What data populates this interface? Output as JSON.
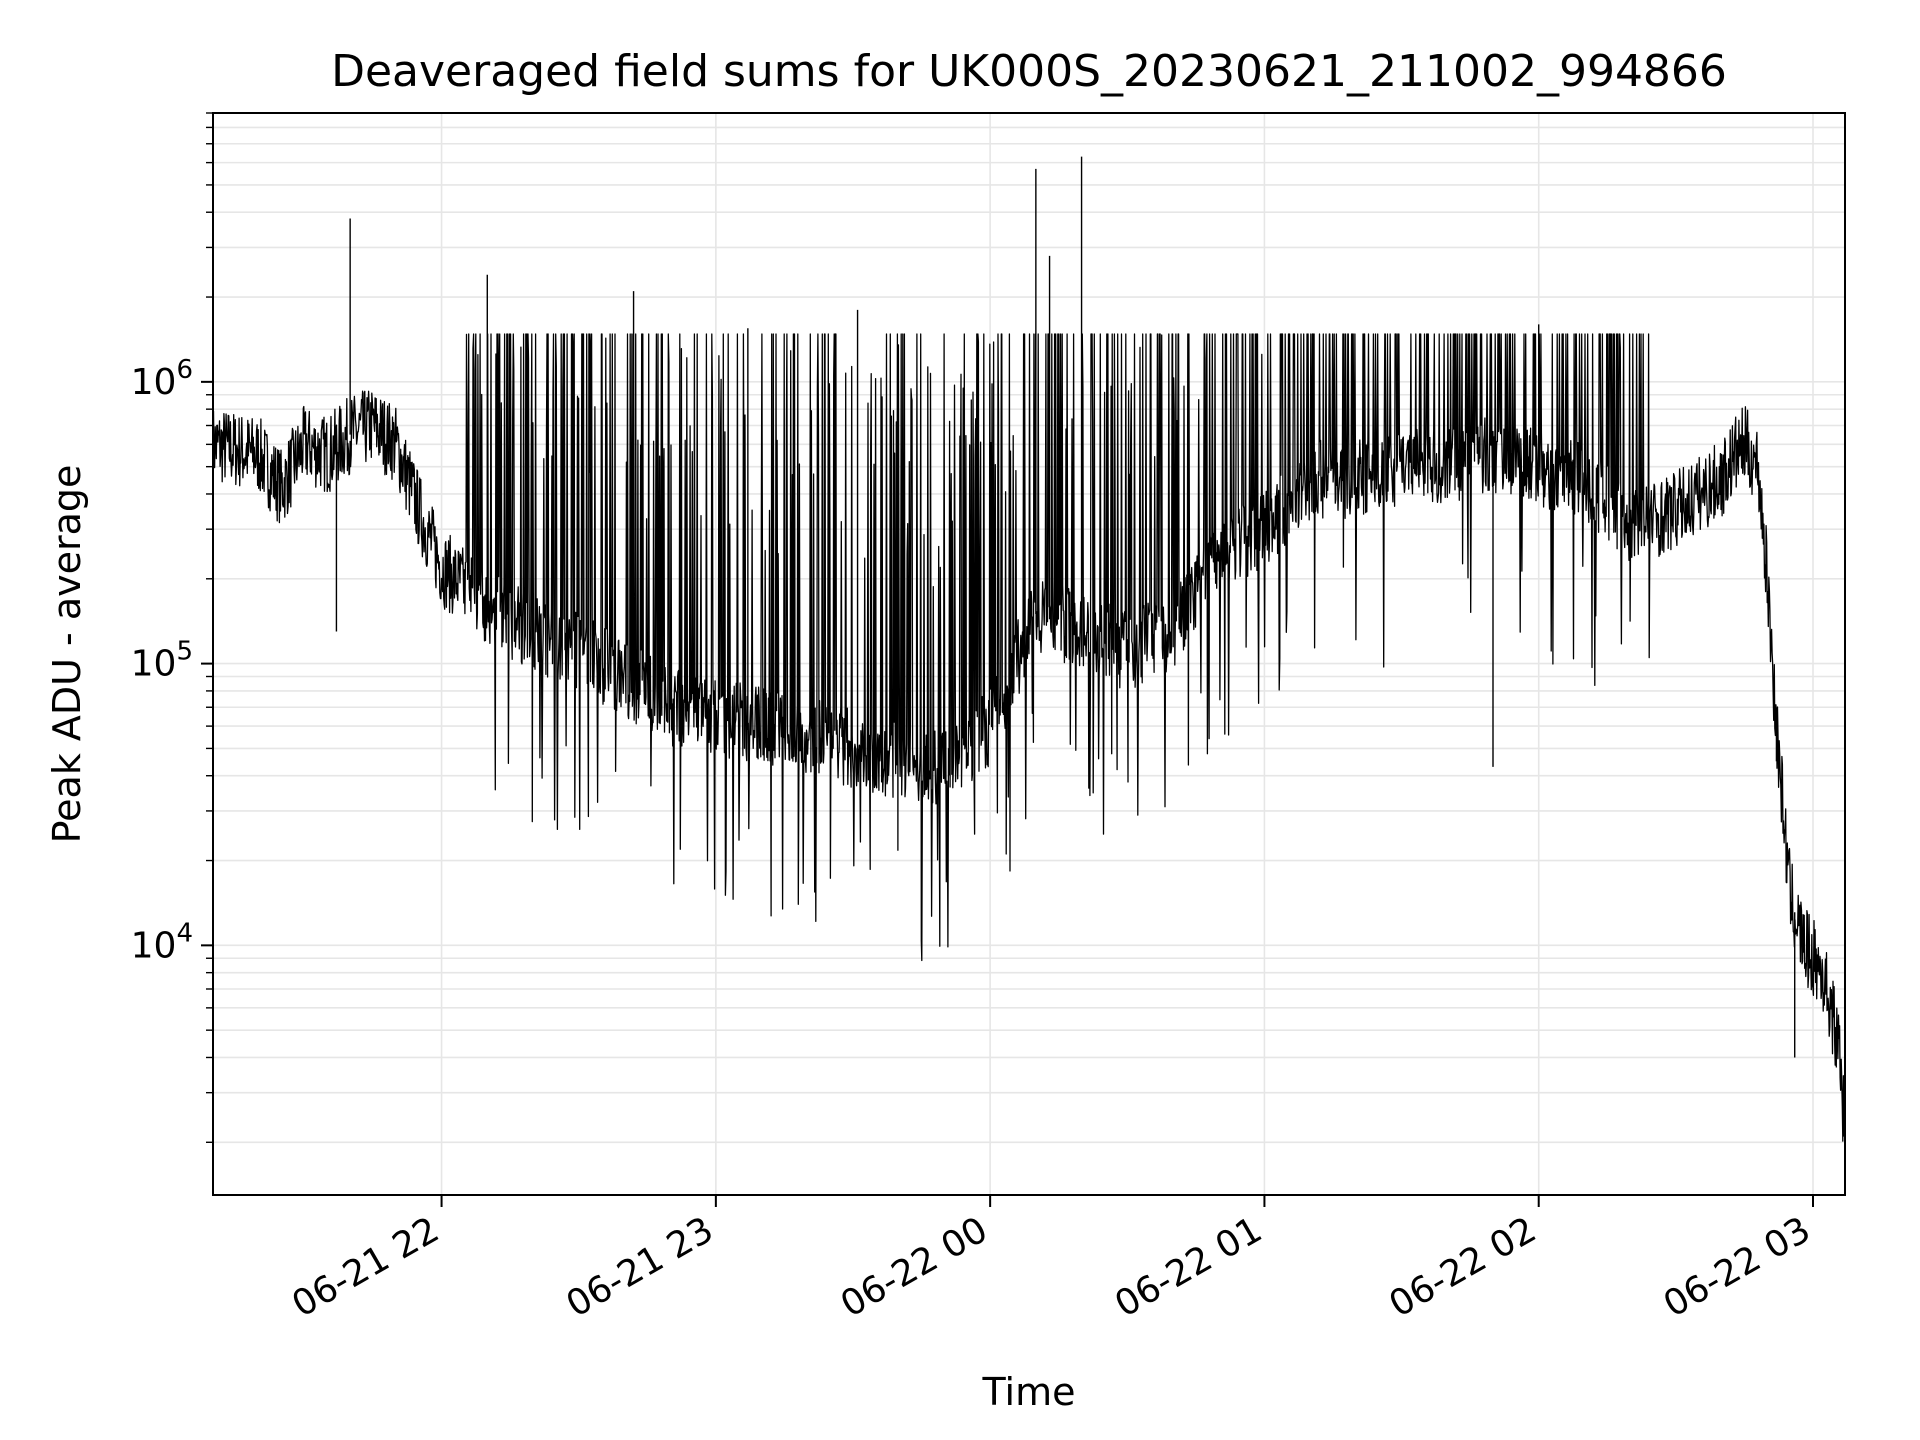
{
  "chart_data": {
    "type": "line",
    "title": "Deaveraged field sums for UK000S_20230621_211002_994866",
    "xlabel": "Time",
    "ylabel": "Peak ADU - average",
    "x_scale": "time",
    "y_scale": "log",
    "xlim": [
      "2023-06-21 21:10",
      "2023-06-22 03:07"
    ],
    "ylim": [
      1300,
      9000000
    ],
    "grid": true,
    "line_color": "#000000",
    "grid_color": "#e6e6e6",
    "x_ticks": [
      {
        "t": "2023-06-21 22:00",
        "label": "06-21 22"
      },
      {
        "t": "2023-06-21 23:00",
        "label": "06-21 23"
      },
      {
        "t": "2023-06-22 00:00",
        "label": "06-22 00"
      },
      {
        "t": "2023-06-22 01:00",
        "label": "06-22 01"
      },
      {
        "t": "2023-06-22 02:00",
        "label": "06-22 02"
      },
      {
        "t": "2023-06-22 03:00",
        "label": "06-22 03"
      }
    ],
    "y_ticks": [
      {
        "value": 10000,
        "base": "10",
        "exp": "4"
      },
      {
        "value": 100000,
        "base": "10",
        "exp": "5"
      },
      {
        "value": 1000000,
        "base": "10",
        "exp": "6"
      }
    ],
    "series": [
      {
        "x": [
          "2023-06-21 21:10",
          "2023-06-21 21:20",
          "2023-06-21 21:25",
          "2023-06-21 21:30",
          "2023-06-21 21:35",
          "2023-06-21 21:40",
          "2023-06-21 21:45",
          "2023-06-21 21:50",
          "2023-06-21 21:55",
          "2023-06-21 22:00",
          "2023-06-21 22:10",
          "2023-06-21 22:20",
          "2023-06-21 22:30",
          "2023-06-21 22:40",
          "2023-06-21 22:50",
          "2023-06-21 23:00",
          "2023-06-21 23:10",
          "2023-06-21 23:20",
          "2023-06-21 23:30",
          "2023-06-21 23:40",
          "2023-06-21 23:50",
          "2023-06-22 00:00",
          "2023-06-22 00:10",
          "2023-06-22 00:20",
          "2023-06-22 00:30",
          "2023-06-22 00:40",
          "2023-06-22 00:50",
          "2023-06-22 01:00",
          "2023-06-22 01:10",
          "2023-06-22 01:20",
          "2023-06-22 01:30",
          "2023-06-22 01:40",
          "2023-06-22 01:50",
          "2023-06-22 02:00",
          "2023-06-22 02:10",
          "2023-06-22 02:20",
          "2023-06-22 02:30",
          "2023-06-22 02:40",
          "2023-06-22 02:43",
          "2023-06-22 02:45",
          "2023-06-22 02:48",
          "2023-06-22 02:50",
          "2023-06-22 02:52",
          "2023-06-22 02:55",
          "2023-06-22 02:58",
          "2023-06-22 03:00",
          "2023-06-22 03:02",
          "2023-06-22 03:04",
          "2023-06-22 03:06",
          "2023-06-22 03:07"
        ],
        "y": [
          600000,
          550000,
          420000,
          600000,
          550000,
          650000,
          700000,
          600000,
          350000,
          220000,
          160000,
          130000,
          110000,
          90000,
          70000,
          65000,
          60000,
          55000,
          50000,
          45000,
          42000,
          60000,
          150000,
          130000,
          110000,
          130000,
          250000,
          300000,
          450000,
          450000,
          500000,
          500000,
          550000,
          500000,
          450000,
          300000,
          350000,
          450000,
          550000,
          600000,
          500000,
          200000,
          60000,
          15000,
          10000,
          9000,
          8000,
          6000,
          4000,
          2000
        ]
      }
    ],
    "spikes": [
      {
        "t": "2023-06-21 21:40",
        "y": 3800000
      },
      {
        "t": "2023-06-21 21:37",
        "y": 130000
      },
      {
        "t": "2023-06-21 22:10",
        "y": 2400000
      },
      {
        "t": "2023-06-21 22:42",
        "y": 2100000
      },
      {
        "t": "2023-06-21 23:07",
        "y": 1550000
      },
      {
        "t": "2023-06-21 23:31",
        "y": 1800000
      },
      {
        "t": "2023-06-22 00:10",
        "y": 5700000
      },
      {
        "t": "2023-06-22 00:13",
        "y": 2800000
      },
      {
        "t": "2023-06-22 00:20",
        "y": 6300000
      },
      {
        "t": "2023-06-22 01:50",
        "y": 43000
      },
      {
        "t": "2023-06-22 02:00",
        "y": 1600000
      },
      {
        "t": "2023-06-22 02:52",
        "y": 45000
      },
      {
        "t": "2023-06-22 02:56",
        "y": 4000
      }
    ]
  }
}
